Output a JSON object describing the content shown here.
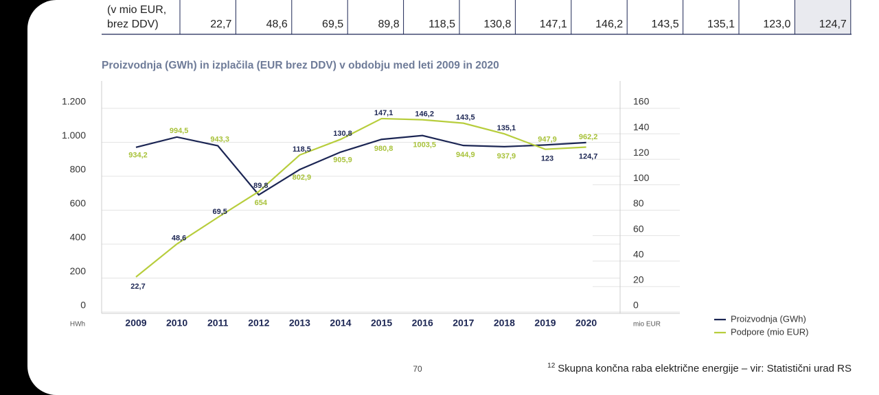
{
  "table": {
    "row_label": [
      "(v mio EUR,",
      "brez DDV)"
    ],
    "cells": [
      "22,7",
      "48,6",
      "69,5",
      "89,8",
      "118,5",
      "130,8",
      "147,1",
      "146,2",
      "143,5",
      "135,1",
      "123,0",
      "124,7"
    ]
  },
  "chart_data": {
    "type": "line",
    "title": "Proizvodnja (GWh) in izplačila (EUR brez DDV) v obdobju med leti 2009 in 2020",
    "categories": [
      "2009",
      "2010",
      "2011",
      "2012",
      "2013",
      "2014",
      "2015",
      "2016",
      "2017",
      "2018",
      "2019",
      "2020"
    ],
    "y_unit": "HWh",
    "y2_unit": "mio EUR",
    "ylim": [
      0,
      1200
    ],
    "yticks": [
      0,
      200,
      400,
      600,
      800,
      {
        "value": 1000,
        "label": "1.000"
      },
      {
        "value": 1200,
        "label": "1.200"
      }
    ],
    "y2lim": [
      0,
      160
    ],
    "y2ticks": [
      0,
      20,
      40,
      60,
      80,
      100,
      120,
      140,
      160
    ],
    "grid": true,
    "legend": "bottom-right",
    "series": [
      {
        "name": "Proizvodnja (GWh)",
        "color": "#1b2553",
        "label_color": "#a8c23a",
        "values": [
          934.2,
          994.5,
          943.3,
          654,
          802.9,
          905.9,
          980.8,
          1003.5,
          944.9,
          937.9,
          947.9,
          962.2
        ],
        "value_labels": [
          "934,2",
          "994,5",
          "943,3",
          "654",
          "802,9",
          "905,9",
          "980,8",
          "1003,5",
          "944,9",
          "937,9",
          "947,9",
          "962,2"
        ]
      },
      {
        "name": "Podpore (mio EUR)",
        "color": "#b7cd3c",
        "label_color": "#1b2553",
        "axis": "y2",
        "values": [
          22.7,
          48.6,
          69.5,
          89.8,
          118.5,
          130.8,
          147.1,
          146.2,
          143.5,
          135.1,
          123,
          124.7
        ],
        "value_labels": [
          "22,7",
          "48,6",
          "69,5",
          "89,8",
          "118,5",
          "130,8",
          "147,1",
          "146,2",
          "143,5",
          "135,1",
          "123",
          "124,7"
        ]
      }
    ]
  },
  "page_number": "70",
  "footnote": {
    "marker": "12",
    "text": "Skupna končna raba električne energije – vir: Statistični urad RS"
  }
}
